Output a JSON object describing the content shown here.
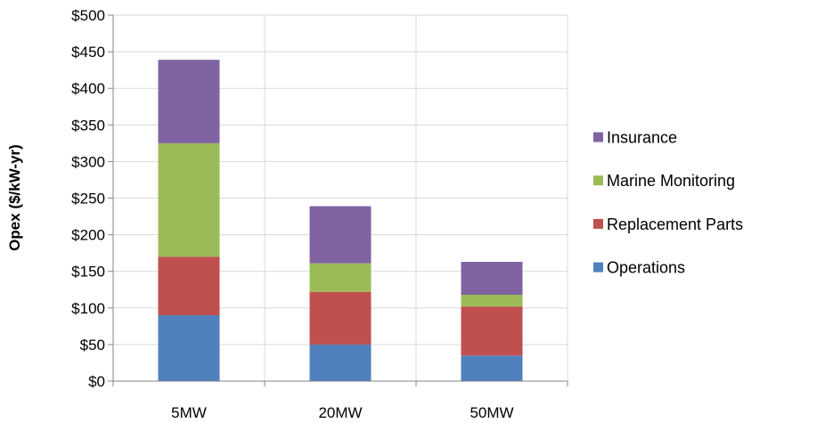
{
  "chart_data": {
    "type": "bar",
    "stacked": true,
    "categories": [
      "5MW",
      "20MW",
      "50MW"
    ],
    "series": [
      {
        "name": "Operations",
        "values": [
          90,
          50,
          35
        ],
        "color": "#4F81BD"
      },
      {
        "name": "Replacement Parts",
        "values": [
          80,
          72,
          67
        ],
        "color": "#C0504D"
      },
      {
        "name": "Marine Monitoring",
        "values": [
          155,
          39,
          16
        ],
        "color": "#9BBB59"
      },
      {
        "name": "Insurance",
        "values": [
          114,
          78,
          45
        ],
        "color": "#8064A2"
      }
    ],
    "title": "",
    "xlabel": "",
    "ylabel": "Opex ($/kW-yr)",
    "ylim": [
      0,
      500
    ],
    "ytick_step": 50,
    "ytick_prefix": "$",
    "grid": true,
    "legend_placement": "right",
    "legend_order": [
      "Insurance",
      "Marine Monitoring",
      "Replacement Parts",
      "Operations"
    ]
  }
}
